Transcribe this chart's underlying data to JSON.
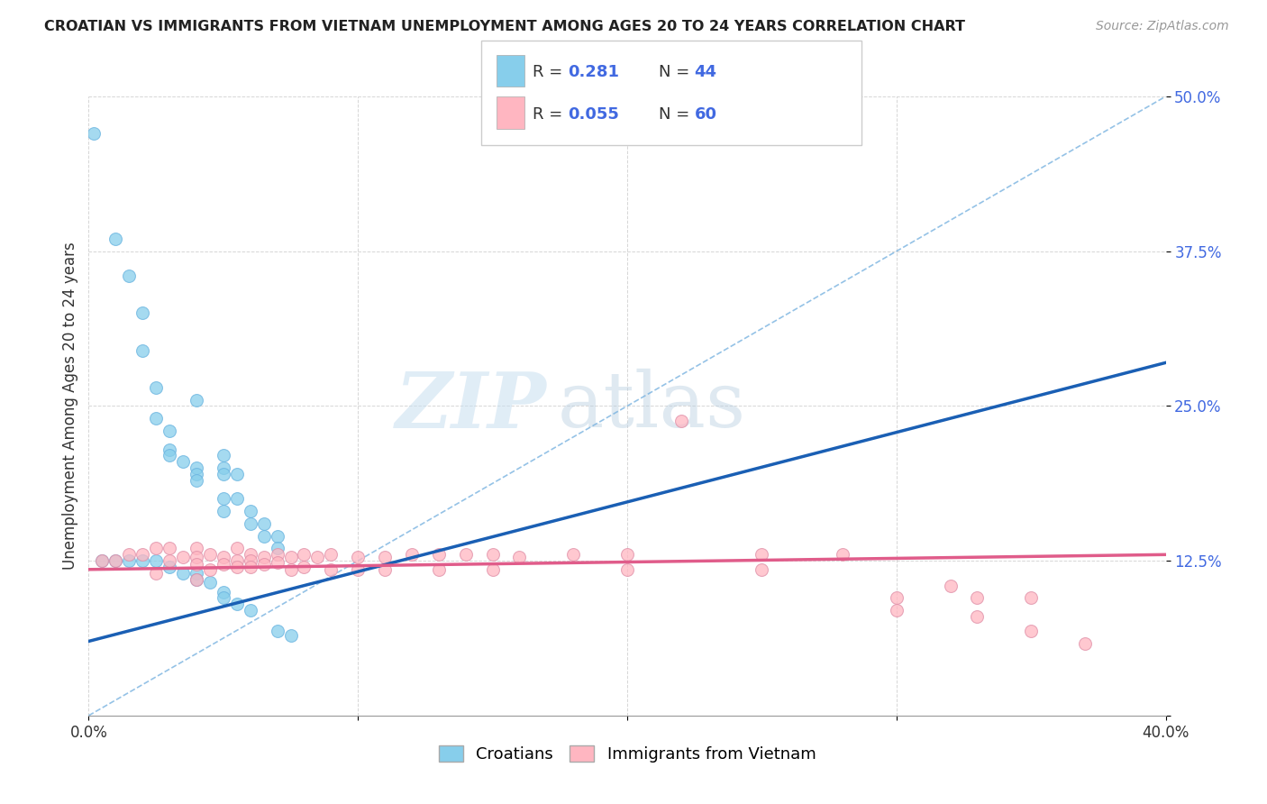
{
  "title": "CROATIAN VS IMMIGRANTS FROM VIETNAM UNEMPLOYMENT AMONG AGES 20 TO 24 YEARS CORRELATION CHART",
  "source": "Source: ZipAtlas.com",
  "ylabel": "Unemployment Among Ages 20 to 24 years",
  "xlim": [
    0.0,
    0.4
  ],
  "ylim": [
    0.0,
    0.5
  ],
  "yticks": [
    0.0,
    0.125,
    0.25,
    0.375,
    0.5
  ],
  "ytick_labels": [
    "",
    "12.5%",
    "25.0%",
    "37.5%",
    "50.0%"
  ],
  "xticks": [
    0.0,
    0.1,
    0.2,
    0.3,
    0.4
  ],
  "xtick_labels": [
    "0.0%",
    "",
    "",
    "",
    "40.0%"
  ],
  "croatian_color": "#87CEEB",
  "vietnam_color": "#FFB6C1",
  "trend_blue_color": "#1a5fb4",
  "trend_pink_color": "#e05c8a",
  "trend_dashed_color": "#7ab3e0",
  "R_croatian": 0.281,
  "N_croatian": 44,
  "R_vietnam": 0.055,
  "N_vietnam": 60,
  "watermark_zip": "ZIP",
  "watermark_atlas": "atlas",
  "legend_label_croatian": "Croatians",
  "legend_label_vietnam": "Immigrants from Vietnam",
  "blue_trend_x": [
    0.0,
    0.4
  ],
  "blue_trend_y": [
    0.06,
    0.285
  ],
  "pink_trend_x": [
    0.0,
    0.4
  ],
  "pink_trend_y": [
    0.118,
    0.13
  ],
  "dashed_trend_x": [
    0.0,
    0.4
  ],
  "dashed_trend_y": [
    0.0,
    0.5
  ],
  "croatian_scatter": [
    [
      0.002,
      0.47
    ],
    [
      0.01,
      0.385
    ],
    [
      0.015,
      0.355
    ],
    [
      0.02,
      0.325
    ],
    [
      0.02,
      0.295
    ],
    [
      0.025,
      0.265
    ],
    [
      0.025,
      0.24
    ],
    [
      0.03,
      0.23
    ],
    [
      0.03,
      0.215
    ],
    [
      0.03,
      0.21
    ],
    [
      0.035,
      0.205
    ],
    [
      0.04,
      0.255
    ],
    [
      0.04,
      0.2
    ],
    [
      0.04,
      0.195
    ],
    [
      0.04,
      0.19
    ],
    [
      0.05,
      0.21
    ],
    [
      0.05,
      0.2
    ],
    [
      0.05,
      0.195
    ],
    [
      0.05,
      0.175
    ],
    [
      0.05,
      0.165
    ],
    [
      0.055,
      0.195
    ],
    [
      0.055,
      0.175
    ],
    [
      0.06,
      0.165
    ],
    [
      0.06,
      0.155
    ],
    [
      0.065,
      0.155
    ],
    [
      0.065,
      0.145
    ],
    [
      0.07,
      0.145
    ],
    [
      0.07,
      0.135
    ],
    [
      0.005,
      0.125
    ],
    [
      0.01,
      0.125
    ],
    [
      0.015,
      0.125
    ],
    [
      0.02,
      0.125
    ],
    [
      0.025,
      0.125
    ],
    [
      0.03,
      0.12
    ],
    [
      0.035,
      0.115
    ],
    [
      0.04,
      0.115
    ],
    [
      0.04,
      0.11
    ],
    [
      0.045,
      0.108
    ],
    [
      0.05,
      0.1
    ],
    [
      0.05,
      0.095
    ],
    [
      0.055,
      0.09
    ],
    [
      0.06,
      0.085
    ],
    [
      0.07,
      0.068
    ],
    [
      0.075,
      0.065
    ]
  ],
  "vietnam_scatter": [
    [
      0.005,
      0.125
    ],
    [
      0.01,
      0.125
    ],
    [
      0.015,
      0.13
    ],
    [
      0.02,
      0.13
    ],
    [
      0.025,
      0.135
    ],
    [
      0.03,
      0.135
    ],
    [
      0.03,
      0.125
    ],
    [
      0.035,
      0.128
    ],
    [
      0.04,
      0.135
    ],
    [
      0.04,
      0.128
    ],
    [
      0.04,
      0.122
    ],
    [
      0.045,
      0.13
    ],
    [
      0.045,
      0.118
    ],
    [
      0.05,
      0.128
    ],
    [
      0.05,
      0.122
    ],
    [
      0.055,
      0.135
    ],
    [
      0.055,
      0.125
    ],
    [
      0.055,
      0.12
    ],
    [
      0.06,
      0.13
    ],
    [
      0.06,
      0.125
    ],
    [
      0.06,
      0.12
    ],
    [
      0.065,
      0.128
    ],
    [
      0.065,
      0.122
    ],
    [
      0.07,
      0.13
    ],
    [
      0.07,
      0.124
    ],
    [
      0.075,
      0.128
    ],
    [
      0.075,
      0.118
    ],
    [
      0.08,
      0.13
    ],
    [
      0.08,
      0.12
    ],
    [
      0.085,
      0.128
    ],
    [
      0.09,
      0.13
    ],
    [
      0.09,
      0.118
    ],
    [
      0.1,
      0.128
    ],
    [
      0.1,
      0.118
    ],
    [
      0.11,
      0.128
    ],
    [
      0.11,
      0.118
    ],
    [
      0.12,
      0.13
    ],
    [
      0.13,
      0.13
    ],
    [
      0.13,
      0.118
    ],
    [
      0.14,
      0.13
    ],
    [
      0.15,
      0.13
    ],
    [
      0.15,
      0.118
    ],
    [
      0.16,
      0.128
    ],
    [
      0.18,
      0.13
    ],
    [
      0.2,
      0.13
    ],
    [
      0.2,
      0.118
    ],
    [
      0.22,
      0.238
    ],
    [
      0.25,
      0.13
    ],
    [
      0.25,
      0.118
    ],
    [
      0.28,
      0.13
    ],
    [
      0.3,
      0.095
    ],
    [
      0.3,
      0.085
    ],
    [
      0.32,
      0.105
    ],
    [
      0.33,
      0.095
    ],
    [
      0.33,
      0.08
    ],
    [
      0.35,
      0.095
    ],
    [
      0.35,
      0.068
    ],
    [
      0.37,
      0.058
    ],
    [
      0.025,
      0.115
    ],
    [
      0.04,
      0.11
    ]
  ]
}
